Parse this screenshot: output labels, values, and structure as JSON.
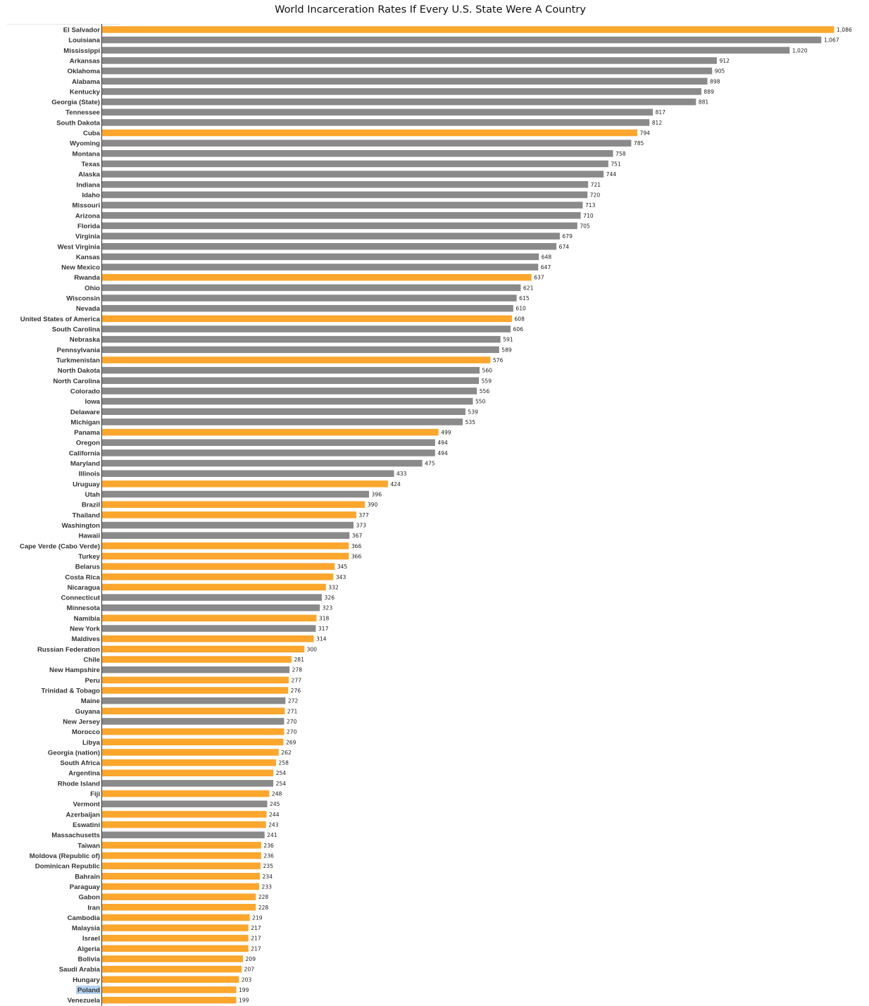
{
  "chart_data": {
    "type": "bar",
    "orientation": "horizontal",
    "title": "World Incarceration Rates If Every U.S. State Were A Country",
    "xlabel": "",
    "ylabel": "",
    "legend": "none",
    "grid": false,
    "colors": {
      "country": "#FBA62D",
      "us_state": "#8A8A8A"
    },
    "categories": [
      "El Salvador",
      "Louisiana",
      "Mississippi",
      "Arkansas",
      "Oklahoma",
      "Alabama",
      "Kentucky",
      "Georgia (State)",
      "Tennessee",
      "South Dakota",
      "Cuba",
      "Wyoming",
      "Montana",
      "Texas",
      "Alaska",
      "Indiana",
      "Idaho",
      "Missouri",
      "Arizona",
      "Florida",
      "Virginia",
      "West Virginia",
      "Kansas",
      "New Mexico",
      "Rwanda",
      "Ohio",
      "Wisconsin",
      "Nevada",
      "United States of America",
      "South Carolina",
      "Nebraska",
      "Pennsylvania",
      "Turkmenistan",
      "North Dakota",
      "North Carolina",
      "Colorado",
      "Iowa",
      "Delaware",
      "Michigan",
      "Panama",
      "Oregon",
      "California",
      "Maryland",
      "Illinois",
      "Uruguay",
      "Utah",
      "Brazil",
      "Thailand",
      "Washington",
      "Hawaii",
      "Cape Verde (Cabo Verde)",
      "Turkey",
      "Belarus",
      "Costa Rica",
      "Nicaragua",
      "Connecticut",
      "Minnesota",
      "Namibia",
      "New York",
      "Maldives",
      "Russian Federation",
      "Chile",
      "New Hampshire",
      "Peru",
      "Trinidad & Tobago",
      "Maine",
      "Guyana",
      "New Jersey",
      "Morocco",
      "Libya",
      "Georgia (nation)",
      "South Africa",
      "Argentina",
      "Rhode Island",
      "Fiji",
      "Vermont",
      "Azerbaijan",
      "Eswatini",
      "Massachusetts",
      "Taiwan",
      "Moldova (Republic of)",
      "Dominican Republic",
      "Bahrain",
      "Paraguay",
      "Gabon",
      "Iran",
      "Cambodia",
      "Malaysia",
      "Israel",
      "Algeria",
      "Bolivia",
      "Saudi Arabia",
      "Hungary",
      "Poland",
      "Venezuela"
    ],
    "values": [
      1086,
      1067,
      1020,
      912,
      905,
      898,
      889,
      881,
      817,
      812,
      794,
      785,
      758,
      751,
      744,
      721,
      720,
      713,
      710,
      705,
      679,
      674,
      648,
      647,
      637,
      621,
      615,
      610,
      608,
      606,
      591,
      589,
      576,
      560,
      559,
      556,
      550,
      539,
      535,
      499,
      494,
      494,
      475,
      433,
      424,
      396,
      390,
      377,
      373,
      367,
      366,
      366,
      345,
      343,
      332,
      326,
      323,
      318,
      317,
      314,
      300,
      281,
      278,
      277,
      276,
      272,
      271,
      270,
      270,
      269,
      262,
      258,
      254,
      254,
      248,
      245,
      244,
      243,
      241,
      236,
      236,
      235,
      234,
      233,
      228,
      228,
      219,
      217,
      217,
      217,
      209,
      207,
      203,
      199,
      199
    ],
    "value_labels": [
      "1,086",
      "1,067",
      "1,020",
      "912",
      "905",
      "898",
      "889",
      "881",
      "817",
      "812",
      "794",
      "785",
      "758",
      "751",
      "744",
      "721",
      "720",
      "713",
      "710",
      "705",
      "679",
      "674",
      "648",
      "647",
      "637",
      "621",
      "615",
      "610",
      "608",
      "606",
      "591",
      "589",
      "576",
      "560",
      "559",
      "556",
      "550",
      "539",
      "535",
      "499",
      "494",
      "494",
      "475",
      "433",
      "424",
      "396",
      "390",
      "377",
      "373",
      "367",
      "366",
      "366",
      "345",
      "343",
      "332",
      "326",
      "323",
      "318",
      "317",
      "314",
      "300",
      "281",
      "278",
      "277",
      "276",
      "272",
      "271",
      "270",
      "270",
      "269",
      "262",
      "258",
      "254",
      "254",
      "248",
      "245",
      "244",
      "243",
      "241",
      "236",
      "236",
      "235",
      "234",
      "233",
      "228",
      "228",
      "219",
      "217",
      "217",
      "217",
      "209",
      "207",
      "203",
      "199",
      "199"
    ],
    "group": [
      "country",
      "us_state",
      "us_state",
      "us_state",
      "us_state",
      "us_state",
      "us_state",
      "us_state",
      "us_state",
      "us_state",
      "country",
      "us_state",
      "us_state",
      "us_state",
      "us_state",
      "us_state",
      "us_state",
      "us_state",
      "us_state",
      "us_state",
      "us_state",
      "us_state",
      "us_state",
      "us_state",
      "country",
      "us_state",
      "us_state",
      "us_state",
      "country",
      "us_state",
      "us_state",
      "us_state",
      "country",
      "us_state",
      "us_state",
      "us_state",
      "us_state",
      "us_state",
      "us_state",
      "country",
      "us_state",
      "us_state",
      "us_state",
      "us_state",
      "country",
      "us_state",
      "country",
      "country",
      "us_state",
      "us_state",
      "country",
      "country",
      "country",
      "country",
      "country",
      "us_state",
      "us_state",
      "country",
      "us_state",
      "country",
      "country",
      "country",
      "us_state",
      "country",
      "country",
      "us_state",
      "country",
      "us_state",
      "country",
      "country",
      "country",
      "country",
      "country",
      "us_state",
      "country",
      "us_state",
      "country",
      "country",
      "us_state",
      "country",
      "country",
      "country",
      "country",
      "country",
      "country",
      "country",
      "country",
      "country",
      "country",
      "country",
      "country",
      "country",
      "country",
      "country",
      "country"
    ],
    "highlighted_label": "Poland"
  }
}
